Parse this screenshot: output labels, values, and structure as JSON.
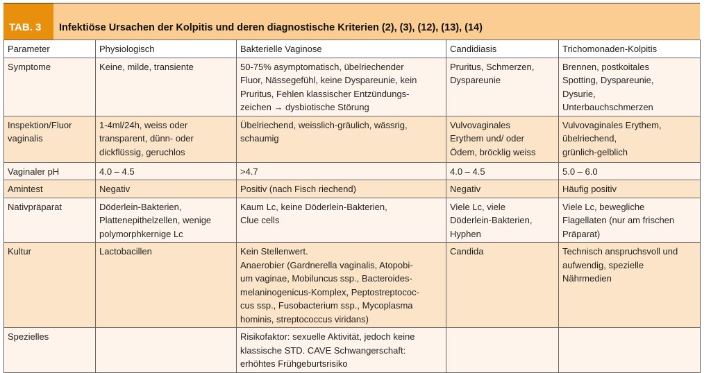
{
  "table": {
    "tag": "TAB. 3",
    "title": "Infektiöse Ursachen der Kolpitis und deren diagnostische Kriterien (2), (3), (12), (13), (14)",
    "headers": [
      "Parameter",
      "Physiologisch",
      "Bakterielle Vaginose",
      "Candidiasis",
      "Trichomonaden-Kolpitis"
    ],
    "rows": [
      [
        "Symptome",
        "Keine, milde, transiente",
        "50-75% asymptomatisch, übelriechender\nFluor, Nässegefühl, keine Dyspareunie, kein\nPruritus, Fehlen klassischer Entzündungs-\nzeichen → dysbiotische Störung",
        "Pruritus, Schmerzen,\nDyspareunie",
        "Brennen, postkoitales\nSpotting, Dyspareunie,\nDysurie,\nUnterbauchschmerzen"
      ],
      [
        "Inspektion/Fluor\nvaginalis",
        "1-4ml/24h, weiss oder\ntransparent, dünn- oder\ndickflüssig, geruchlos",
        "Übelriechend, weisslich-gräulich, wässrig,\nschaumig",
        "Vulvovaginales\nErythem und/ oder\nÖdem, bröcklig weiss",
        "Vulvovaginales Erythem,\nübelriechend,\ngrünlich-gelblich"
      ],
      [
        "Vaginaler pH",
        "4.0 – 4.5",
        ">4.7",
        "4.0 – 4.5",
        "5.0 – 6.0"
      ],
      [
        "Amintest",
        "Negativ",
        "Positiv (nach Fisch riechend)",
        "Negativ",
        "Häufig positiv"
      ],
      [
        "Nativpräparat",
        "Döderlein-Bakterien,\nPlattenepithelzellen, wenige\npolymorphkernige Lc",
        "Kaum Lc, keine Döderlein-Bakterien,\nClue cells",
        "Viele Lc, viele\nDöderlein-Bakterien,\nHyphen",
        "Viele Lc, bewegliche\nFlagellaten (nur am frischen\nPräparat)"
      ],
      [
        "Kultur",
        "Lactobacillen",
        "Kein Stellenwert.\nAnaerobier (Gardnerella vaginalis, Atopobi-\num vaginae, Mobiluncus ssp., Bacteroides-\nmelaninogenicus-Komplex, Peptostreptococ-\ncus ssp., Fusobacterium ssp., Mycoplasma\nhominis, streptococcus viridans)",
        "Candida",
        "Technisch anspruchsvoll und\naufwendig, spezielle\nNährmedien"
      ],
      [
        "Spezielles",
        "",
        "Risikofaktor: sexuelle Aktivität, jedoch keine\nklassische STD. CAVE Schwangerschaft:\nerhöhtes Frühgeburtsrisiko",
        "",
        ""
      ]
    ]
  },
  "colors": {
    "tab": "#e8900d",
    "titlebar": "#fbcd93",
    "row_light": "#fef4ec",
    "row_orange": "#fce4c8"
  }
}
